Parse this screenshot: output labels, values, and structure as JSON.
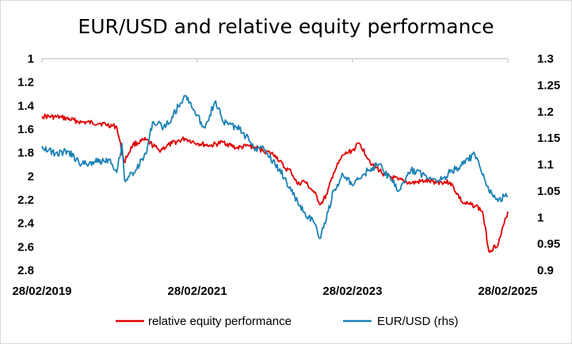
{
  "chart_data": {
    "type": "line",
    "title": "EUR/USD and relative equity performance",
    "x_tick_labels": [
      "28/02/2019",
      "28/02/2021",
      "28/02/2023",
      "28/02/2025"
    ],
    "x_range": [
      "28/02/2019",
      "28/02/2025"
    ],
    "left_axis": {
      "inverted": true,
      "ylim": [
        1,
        2.8
      ],
      "tick_labels": [
        "1",
        "1.2",
        "1.4",
        "1.6",
        "1.8",
        "2",
        "2.2",
        "2.4",
        "2.6",
        "2.8"
      ]
    },
    "right_axis": {
      "ylim": [
        0.9,
        1.3
      ],
      "tick_labels": [
        "1.3",
        "1.25",
        "1.2",
        "1.15",
        "1.1",
        "1.05",
        "1",
        "0.95",
        "0.9"
      ]
    },
    "grid": false,
    "legend_position": "bottom",
    "series": [
      {
        "name": "relative equity performance",
        "axis": "left",
        "color": "#e00000",
        "x": [
          "28/02/2019",
          "01/06/2019",
          "01/09/2019",
          "01/12/2019",
          "15/02/2020",
          "20/03/2020",
          "01/05/2020",
          "01/07/2020",
          "01/09/2020",
          "01/11/2020",
          "01/01/2021",
          "28/02/2021",
          "01/05/2021",
          "01/07/2021",
          "01/09/2021",
          "01/11/2021",
          "01/01/2022",
          "01/03/2022",
          "15/04/2022",
          "15/05/2022",
          "15/06/2022",
          "15/07/2022",
          "01/09/2022",
          "01/10/2022",
          "01/11/2022",
          "01/12/2022",
          "15/01/2023",
          "28/02/2023",
          "01/04/2023",
          "01/06/2023",
          "01/08/2023",
          "01/10/2023",
          "01/12/2023",
          "01/02/2024",
          "01/04/2024",
          "01/06/2024",
          "01/08/2024",
          "01/09/2024",
          "01/10/2024",
          "01/11/2024",
          "01/12/2024",
          "15/01/2025",
          "28/02/2025"
        ],
        "values": [
          1.49,
          1.5,
          1.54,
          1.55,
          1.58,
          1.88,
          1.73,
          1.69,
          1.78,
          1.72,
          1.68,
          1.72,
          1.74,
          1.71,
          1.76,
          1.74,
          1.78,
          1.82,
          1.93,
          1.96,
          2.07,
          2.04,
          2.14,
          2.24,
          2.15,
          1.97,
          1.82,
          1.78,
          1.72,
          1.9,
          1.99,
          2.03,
          2.06,
          2.04,
          2.05,
          2.05,
          2.23,
          2.24,
          2.25,
          2.3,
          2.64,
          2.57,
          2.3
        ]
      },
      {
        "name": "EUR/USD (rhs)",
        "axis": "right",
        "color": "#1a82b5",
        "x": [
          "28/02/2019",
          "01/05/2019",
          "01/07/2019",
          "01/09/2019",
          "01/11/2019",
          "15/01/2020",
          "15/02/2020",
          "10/03/2020",
          "23/03/2020",
          "15/05/2020",
          "01/07/2020",
          "01/08/2020",
          "01/10/2020",
          "01/12/2020",
          "06/01/2021",
          "31/03/2021",
          "25/05/2021",
          "01/07/2021",
          "01/09/2021",
          "01/10/2021",
          "01/12/2021",
          "01/01/2022",
          "01/03/2022",
          "15/04/2022",
          "15/05/2022",
          "15/07/2022",
          "01/09/2022",
          "27/09/2022",
          "15/10/2022",
          "01/12/2022",
          "15/01/2023",
          "01/03/2023",
          "15/05/2023",
          "01/07/2023",
          "01/09/2023",
          "03/10/2023",
          "01/12/2023",
          "01/02/2024",
          "15/04/2024",
          "01/06/2024",
          "01/08/2024",
          "25/09/2024",
          "01/11/2024",
          "01/12/2024",
          "13/01/2025",
          "10/02/2025",
          "28/02/2025"
        ],
        "values": [
          1.135,
          1.12,
          1.125,
          1.1,
          1.105,
          1.11,
          1.085,
          1.14,
          1.07,
          1.09,
          1.12,
          1.18,
          1.17,
          1.21,
          1.23,
          1.17,
          1.22,
          1.18,
          1.17,
          1.16,
          1.13,
          1.135,
          1.1,
          1.075,
          1.05,
          1.01,
          0.99,
          0.96,
          0.98,
          1.05,
          1.08,
          1.06,
          1.09,
          1.1,
          1.07,
          1.05,
          1.09,
          1.08,
          1.07,
          1.085,
          1.1,
          1.12,
          1.08,
          1.05,
          1.03,
          1.04,
          1.04
        ]
      }
    ]
  }
}
